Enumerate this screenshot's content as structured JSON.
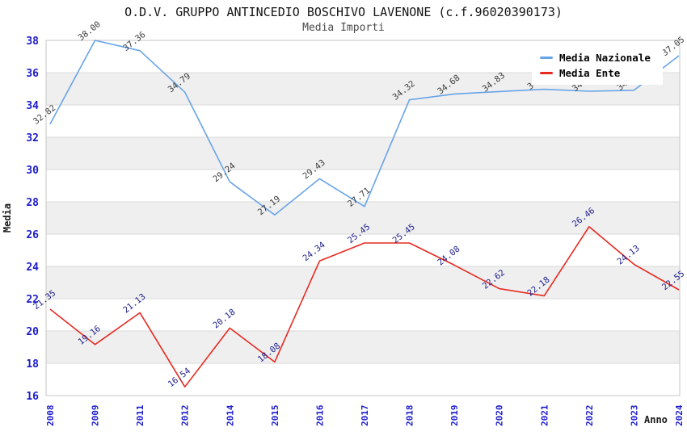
{
  "chart_data": {
    "type": "line",
    "title": "O.D.V. GRUPPO ANTINCEDIO BOSCHIVO LAVENONE (c.f.96020390173)",
    "subtitle": "Media Importi",
    "xlabel": "Anno",
    "ylabel": "Media",
    "categories": [
      "2008",
      "2009",
      "2011",
      "2012",
      "2014",
      "2015",
      "2016",
      "2017",
      "2018",
      "2019",
      "2020",
      "2021",
      "2022",
      "2023",
      "2024"
    ],
    "series": [
      {
        "name": "Media Nazionale",
        "color": "#68a4e8",
        "label_color": "#3c3c3c",
        "values": [
          32.82,
          38.0,
          37.36,
          34.79,
          29.24,
          27.19,
          29.43,
          27.71,
          34.32,
          34.68,
          34.83,
          34.97,
          34.85,
          34.91,
          37.05
        ]
      },
      {
        "name": "Media Ente",
        "color": "#e62a20",
        "label_color": "#20208e",
        "values": [
          21.35,
          19.16,
          21.13,
          16.54,
          20.18,
          18.08,
          24.34,
          25.45,
          25.45,
          24.08,
          22.62,
          22.18,
          26.46,
          24.13,
          22.55
        ]
      }
    ],
    "ylim": [
      16,
      38
    ],
    "ytick_step": 2,
    "yticks": [
      16,
      18,
      20,
      22,
      24,
      26,
      28,
      30,
      32,
      34,
      36,
      38
    ],
    "grid": "horizontal-gridlines-with-alternating-bands",
    "legend_position": "top-right",
    "colors": {
      "tick_label": "#1c1ccc",
      "band_gray": "#efefef",
      "gridline": "#dadada",
      "frame": "#c6c6c6"
    }
  }
}
